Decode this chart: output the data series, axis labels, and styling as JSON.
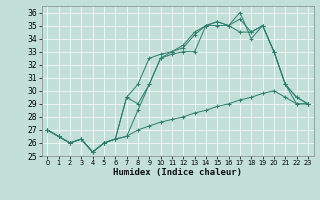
{
  "xlabel": "Humidex (Indice chaleur)",
  "background_color": "#c2e0d8",
  "line_color": "#2e7d6e",
  "grid_color": "#ffffff",
  "ylim": [
    25,
    36.5
  ],
  "xlim": [
    -0.5,
    23.5
  ],
  "yticks": [
    25,
    26,
    27,
    28,
    29,
    30,
    31,
    32,
    33,
    34,
    35,
    36
  ],
  "xticks": [
    0,
    1,
    2,
    3,
    4,
    5,
    6,
    7,
    8,
    9,
    10,
    11,
    12,
    13,
    14,
    15,
    16,
    17,
    18,
    19,
    20,
    21,
    22,
    23
  ],
  "lines": [
    {
      "x": [
        0,
        1,
        2,
        3,
        4,
        5,
        6,
        7,
        8,
        9,
        10,
        11,
        12,
        13,
        14,
        15,
        16,
        17,
        18,
        19,
        20,
        21,
        22,
        23
      ],
      "y": [
        27,
        26.5,
        26,
        26.3,
        25.3,
        26,
        26.3,
        29.5,
        30.5,
        32.5,
        32.8,
        33,
        33.3,
        34.3,
        35,
        35.3,
        35,
        36,
        34,
        35,
        33,
        30.5,
        29,
        29
      ]
    },
    {
      "x": [
        0,
        1,
        2,
        3,
        4,
        5,
        6,
        7,
        8,
        9,
        10,
        11,
        12,
        13,
        14,
        15,
        16,
        17,
        18,
        19,
        20,
        21,
        22,
        23
      ],
      "y": [
        27,
        26.5,
        26,
        26.3,
        25.3,
        26,
        26.3,
        29.5,
        29,
        30.5,
        32.5,
        33,
        33.5,
        34.5,
        35,
        35.3,
        35,
        35.5,
        34.5,
        35,
        33,
        30.5,
        29.5,
        29
      ]
    },
    {
      "x": [
        0,
        1,
        2,
        3,
        4,
        5,
        6,
        7,
        8,
        9,
        10,
        11,
        12,
        13,
        14,
        15,
        16,
        17,
        18,
        19,
        20,
        21,
        22,
        23
      ],
      "y": [
        27,
        26.5,
        26,
        26.3,
        25.3,
        26,
        26.3,
        26.5,
        28.5,
        30.5,
        32.5,
        32.8,
        33,
        33,
        35,
        35,
        35,
        34.5,
        34.5,
        35,
        33,
        30.5,
        29.5,
        29
      ]
    },
    {
      "x": [
        0,
        1,
        2,
        3,
        4,
        5,
        6,
        7,
        8,
        9,
        10,
        11,
        12,
        13,
        14,
        15,
        16,
        17,
        18,
        19,
        20,
        21,
        22,
        23
      ],
      "y": [
        27,
        26.5,
        26,
        26.3,
        25.3,
        26,
        26.3,
        26.5,
        27,
        27.3,
        27.6,
        27.8,
        28,
        28.3,
        28.5,
        28.8,
        29,
        29.3,
        29.5,
        29.8,
        30,
        29.5,
        29,
        29
      ]
    }
  ]
}
